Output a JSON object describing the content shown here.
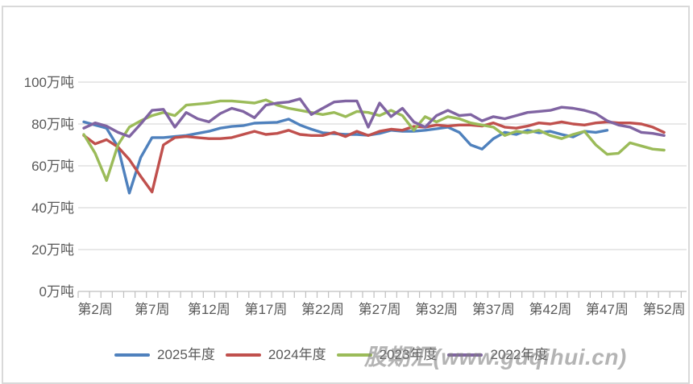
{
  "panel": {
    "background": "#ffffff",
    "border_color": "#d9d9d9",
    "gridline_color": "#d9d9d9",
    "axis_color": "#bfbfbf",
    "label_color": "#595959"
  },
  "watermark": {
    "text": "股期汇(www.guqihui.cn)"
  },
  "chart_data": {
    "type": "line",
    "title": "",
    "unit": "万吨",
    "grid": true,
    "legend_position": "bottom",
    "x_axis": {
      "first_week": 1,
      "last_week": 52,
      "tick_labels": [
        "第2周",
        "第7周",
        "第12周",
        "第17周",
        "第22周",
        "第27周",
        "第32周",
        "第37周",
        "第42周",
        "第47周",
        "第52周"
      ],
      "tick_weeks": [
        2,
        7,
        12,
        17,
        22,
        27,
        32,
        37,
        42,
        47,
        52
      ]
    },
    "y_axis": {
      "range": [
        0,
        100
      ],
      "tick_values": [
        100,
        80,
        60,
        40,
        20,
        0
      ],
      "tick_labels": [
        "100万吨",
        "80万吨",
        "60万吨",
        "40万吨",
        "20万吨",
        "0万吨"
      ]
    },
    "series": [
      {
        "name": "2025年度",
        "color": "#4F81BD",
        "start_week": 1,
        "values": [
          81,
          79.5,
          78,
          69,
          47,
          64,
          73.5,
          73.5,
          74,
          74.5,
          75.5,
          76.5,
          78,
          78.8,
          79.2,
          80.4,
          80.6,
          80.8,
          82.3,
          79.5,
          77.5,
          75.8,
          75.4,
          75,
          75,
          74.6,
          75.5,
          77,
          76.5,
          76.5,
          77,
          77.7,
          78.5,
          76,
          70,
          68,
          73,
          76,
          75,
          77,
          75.8,
          76.5,
          75,
          73.8,
          76.5,
          76,
          77
        ]
      },
      {
        "name": "2024年度",
        "color": "#C0504D",
        "start_week": 1,
        "values": [
          74.5,
          70.5,
          72.5,
          69,
          63,
          55,
          47.5,
          70,
          73.5,
          74,
          73.5,
          73,
          73,
          73.5,
          75,
          76.5,
          75,
          75.5,
          77,
          75,
          74.5,
          74.5,
          76,
          74,
          76.5,
          74.5,
          76.5,
          77.5,
          77,
          78.8,
          78.5,
          79.5,
          79,
          79.5,
          79.5,
          79,
          80.5,
          78.5,
          78,
          79,
          80.5,
          80,
          81,
          80,
          79.5,
          80.5,
          81,
          80.5,
          80.5,
          80,
          78.5,
          76
        ]
      },
      {
        "name": "2023年度",
        "color": "#9BBB59",
        "start_week": 1,
        "values": [
          75,
          66,
          53,
          70,
          78.5,
          81.5,
          84,
          85.5,
          84,
          89,
          89.5,
          90,
          91,
          91,
          90.5,
          90,
          91.5,
          89,
          87.5,
          86.5,
          85.5,
          84.5,
          85.5,
          83.5,
          86,
          85.5,
          84,
          86.5,
          84,
          77,
          83.5,
          81,
          83.5,
          82.5,
          80.5,
          79.5,
          78.5,
          74.5,
          76.5,
          75.8,
          77,
          74.5,
          73,
          75,
          76.5,
          70,
          65.5,
          66,
          71,
          69.5,
          68,
          67.5
        ]
      },
      {
        "name": "2022年度",
        "color": "#8064A2",
        "start_week": 1,
        "values": [
          78,
          80.5,
          79,
          76,
          74,
          80,
          86.5,
          87,
          78.5,
          85.5,
          82.5,
          81,
          85,
          87.5,
          86,
          83,
          89,
          90,
          90.5,
          92,
          84.5,
          87.5,
          90.5,
          91,
          91,
          78.5,
          90,
          83.5,
          87.5,
          81,
          78.5,
          84,
          86.5,
          84,
          84.5,
          81.5,
          83.5,
          82.5,
          84,
          85.5,
          86,
          86.5,
          88,
          87.5,
          86.5,
          85,
          81.5,
          79.5,
          78.5,
          76,
          75.5,
          74.5
        ]
      }
    ]
  }
}
